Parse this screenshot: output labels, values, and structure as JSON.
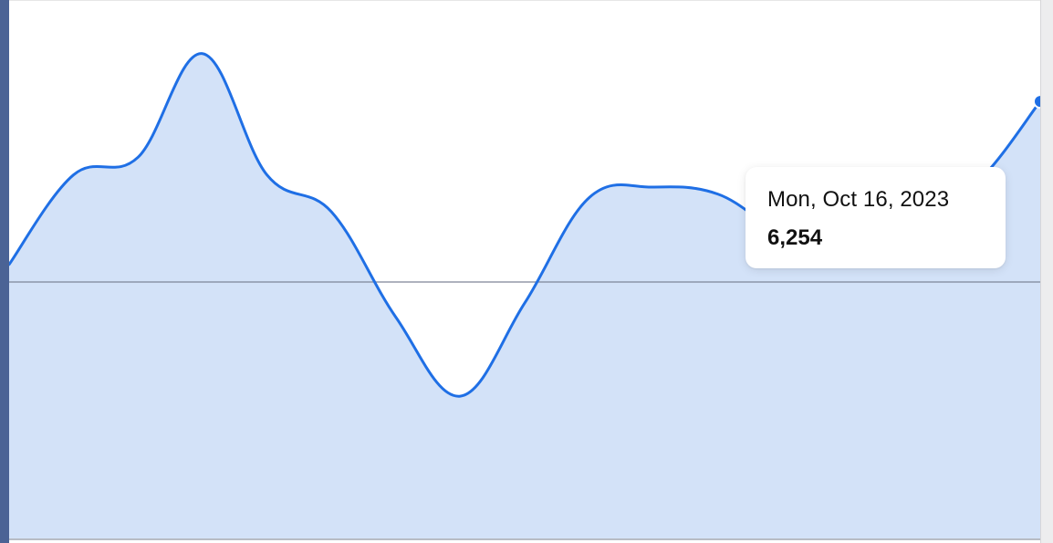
{
  "chart_data": {
    "type": "area",
    "x": [
      0,
      1,
      2,
      3,
      4,
      5,
      6,
      7,
      8,
      9,
      10,
      11,
      12,
      13,
      14,
      15,
      16
    ],
    "values": [
      5790,
      6045,
      6095,
      6390,
      6045,
      5940,
      5640,
      5415,
      5680,
      5980,
      6010,
      5990,
      5880,
      5840,
      5930,
      6020,
      6254
    ],
    "reference_line": 5740,
    "y_range": [
      5010,
      6540
    ],
    "x_range": [
      0,
      16
    ],
    "grid": false,
    "colors": {
      "line": "#1f6fe5",
      "fill": "#d3e2f8",
      "reference": "#7d8597"
    },
    "tooltip": {
      "date": "Mon, Oct 16, 2023",
      "value": "6,254"
    }
  }
}
